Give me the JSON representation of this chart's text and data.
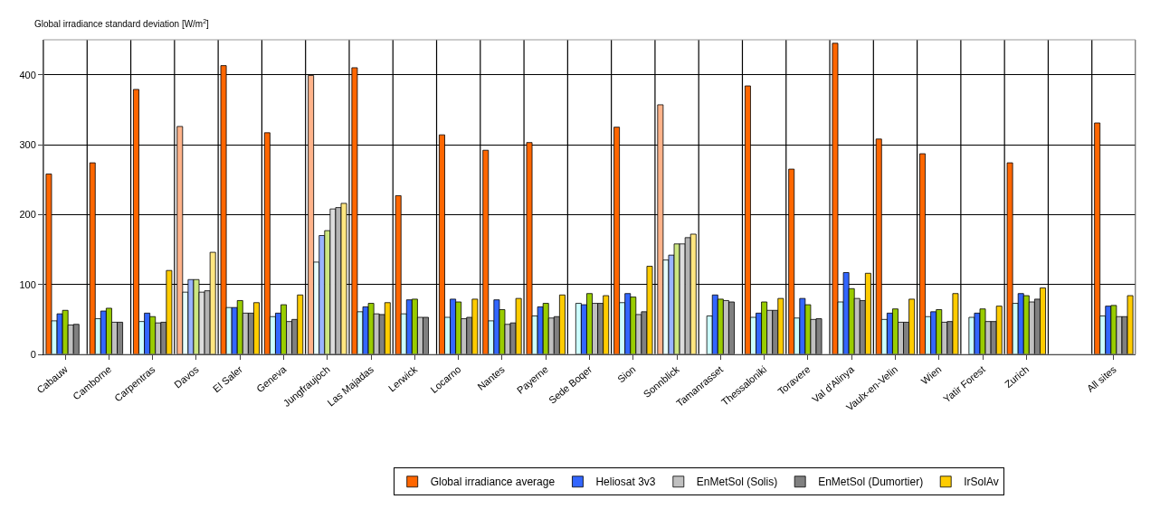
{
  "chart_data": {
    "type": "bar",
    "ylabel": "Global irradiance standard deviation [W/m$^{2}$]",
    "categories": [
      "Cabauw",
      "Camborne",
      "Carpentras",
      "Davos",
      "El Saler",
      "Geneva",
      "Jungfraujoch",
      "Las Majadas",
      "Lerwick",
      "Locarno",
      "Nantes",
      "Payerne",
      "Sede Boqer",
      "Sion",
      "Sonnblick",
      "Tamanrasset",
      "Thessaloniki",
      "Toravere",
      "Val d'Alinya",
      "Vaulx-en-Velin",
      "Wien",
      "Yatir Forest",
      "Zurich",
      null,
      "All sites"
    ],
    "series": [
      {
        "name": "Global irradiance average",
        "colors": [
          "#ff6600",
          "#ff6600",
          "#ff6600",
          "#ffb38a",
          "#ff6600",
          "#ff6600",
          "#ffb38a",
          "#ff6600",
          "#ff6600",
          "#ff6600",
          "#ff6600",
          "#ff6600",
          "#ff6600",
          "#ff6600",
          "#ffb38a",
          "#ff6600",
          "#ff6600",
          "#ff6600",
          "#ff6600",
          "#ff6600",
          "#ff6600",
          "#ff6600",
          "#ff6600",
          "#ff6600",
          "#ff6600"
        ],
        "values": [
          258,
          274,
          379,
          326,
          413,
          317,
          399,
          410,
          227,
          314,
          292,
          303,
          null,
          325,
          357,
          null,
          384,
          265,
          445,
          308,
          287,
          null,
          274,
          null,
          331
        ]
      },
      {
        "colors": [
          "#ccffff",
          "#ccffff",
          "#ccffff",
          "#e6ffff",
          "#ccffff",
          "#ccffff",
          "#e6ffff",
          "#ccffff",
          "#ccffff",
          "#ccffff",
          "#ccffff",
          "#ccffff",
          "#ccffff",
          "#ccffff",
          "#e6ffff",
          "#ccffff",
          "#ccffff",
          "#ccffff",
          "#ccffff",
          "#ccffff",
          "#ccffff",
          "#ccffff",
          "#ccffff",
          "#ccffff",
          "#ccffff"
        ],
        "values": [
          48,
          51,
          47,
          89,
          67,
          54,
          132,
          61,
          58,
          53,
          48,
          55,
          73,
          74,
          135,
          55,
          53,
          52,
          75,
          50,
          54,
          53,
          73,
          null,
          55
        ]
      },
      {
        "name": "Heliosat 3v3",
        "colors": [
          "#3366ff",
          "#3366ff",
          "#3366ff",
          "#99b3ff",
          "#3366ff",
          "#3366ff",
          "#99b3ff",
          "#3366ff",
          "#3366ff",
          "#3366ff",
          "#3366ff",
          "#3366ff",
          "#3366ff",
          "#3366ff",
          "#99b3ff",
          "#3366ff",
          "#3366ff",
          "#3366ff",
          "#3366ff",
          "#3366ff",
          "#3366ff",
          "#3366ff",
          "#3366ff",
          "#3366ff",
          "#3366ff"
        ],
        "values": [
          58,
          62,
          59,
          107,
          67,
          59,
          170,
          68,
          78,
          79,
          78,
          68,
          71,
          87,
          142,
          85,
          59,
          80,
          117,
          59,
          61,
          59,
          87,
          null,
          69
        ]
      },
      {
        "colors": [
          "#99cc00",
          "#99cc00",
          "#99cc00",
          "#cce680",
          "#99cc00",
          "#99cc00",
          "#cce680",
          "#99cc00",
          "#99cc00",
          "#99cc00",
          "#99cc00",
          "#99cc00",
          "#99cc00",
          "#99cc00",
          "#cce680",
          "#99cc00",
          "#99cc00",
          "#99cc00",
          "#99cc00",
          "#99cc00",
          "#99cc00",
          "#99cc00",
          "#99cc00",
          "#99cc00",
          "#99cc00"
        ],
        "values": [
          63,
          66,
          54,
          107,
          77,
          71,
          177,
          73,
          79,
          75,
          64,
          73,
          87,
          82,
          158,
          79,
          75,
          71,
          94,
          65,
          64,
          65,
          84,
          null,
          70
        ]
      },
      {
        "name": "EnMetSol (Solis)",
        "colors": [
          "#c0c0c0",
          "#c0c0c0",
          "#c0c0c0",
          "#dddddd",
          "#c0c0c0",
          "#c0c0c0",
          "#dddddd",
          "#c0c0c0",
          "#c0c0c0",
          "#c0c0c0",
          "#c0c0c0",
          "#c0c0c0",
          "#c0c0c0",
          "#c0c0c0",
          "#dddddd",
          "#c0c0c0",
          "#c0c0c0",
          "#c0c0c0",
          "#c0c0c0",
          "#c0c0c0",
          "#c0c0c0",
          "#c0c0c0",
          "#c0c0c0",
          "#c0c0c0",
          "#c0c0c0"
        ],
        "values": [
          42,
          46,
          45,
          89,
          59,
          47,
          208,
          58,
          53,
          51,
          43,
          52,
          73,
          57,
          158,
          77,
          63,
          50,
          80,
          46,
          46,
          47,
          75,
          null,
          54
        ]
      },
      {
        "name": "EnMetSol (Dumortier)",
        "colors": [
          "#808080",
          "#808080",
          "#808080",
          "#b3b3b3",
          "#808080",
          "#808080",
          "#b3b3b3",
          "#808080",
          "#808080",
          "#808080",
          "#808080",
          "#808080",
          "#808080",
          "#808080",
          "#b3b3b3",
          "#808080",
          "#808080",
          "#808080",
          "#808080",
          "#808080",
          "#808080",
          "#808080",
          "#808080",
          "#808080",
          "#808080"
        ],
        "values": [
          43,
          46,
          46,
          91,
          59,
          50,
          210,
          57,
          53,
          53,
          45,
          54,
          73,
          61,
          167,
          75,
          63,
          51,
          77,
          46,
          47,
          47,
          79,
          null,
          54
        ]
      },
      {
        "name": "IrSolAv",
        "colors": [
          "#ffcc00",
          "#ffcc00",
          "#ffcc00",
          "#ffe680",
          "#ffcc00",
          "#ffcc00",
          "#ffe680",
          "#ffcc00",
          "#ffcc00",
          "#ffcc00",
          "#ffcc00",
          "#ffcc00",
          "#ffcc00",
          "#ffcc00",
          "#ffe680",
          "#ffcc00",
          "#ffcc00",
          "#ffcc00",
          "#ffcc00",
          "#ffcc00",
          "#ffcc00",
          "#ffcc00",
          "#ffcc00",
          "#ffcc00",
          "#ffcc00"
        ],
        "values": [
          null,
          null,
          120,
          146,
          74,
          85,
          216,
          74,
          null,
          79,
          80,
          85,
          84,
          126,
          172,
          null,
          80,
          null,
          116,
          79,
          87,
          69,
          95,
          null,
          84
        ]
      }
    ],
    "ylim": [
      0,
      450
    ],
    "yticks": [
      0,
      100,
      200,
      300,
      400
    ],
    "grid": true,
    "legend": "bottom"
  }
}
